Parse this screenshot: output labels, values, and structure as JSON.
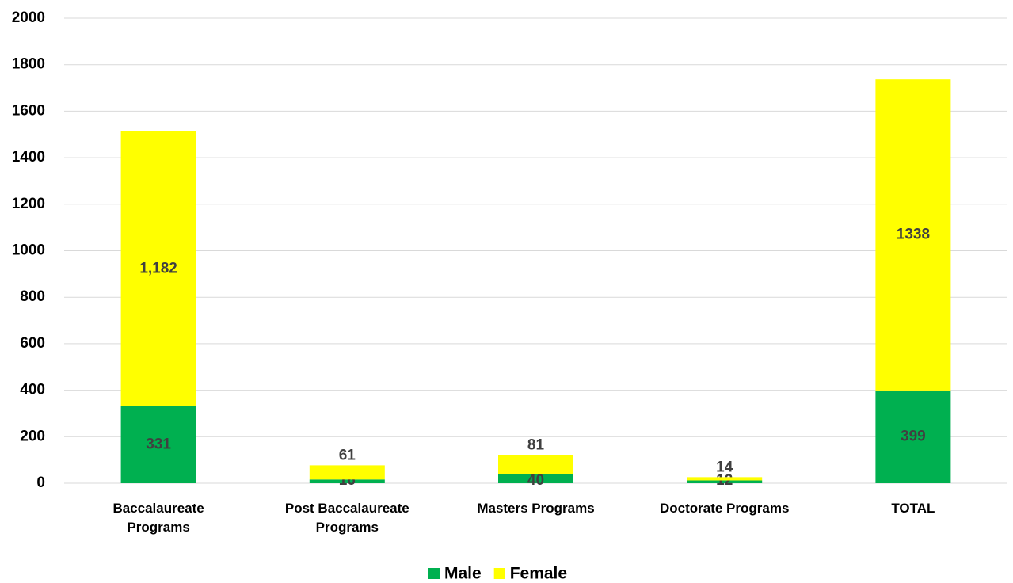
{
  "chart_data": {
    "type": "bar",
    "stacked": true,
    "categories": [
      "Baccalaureate Programs",
      "Post Baccalaureate Programs",
      "Masters Programs",
      "Doctorate Programs",
      "TOTAL"
    ],
    "series": [
      {
        "name": "Male",
        "color": "#00b050",
        "values": [
          331,
          16,
          40,
          12,
          399
        ]
      },
      {
        "name": "Female",
        "color": "#ffff00",
        "values": [
          1182,
          61,
          81,
          14,
          1338
        ],
        "value_labels": [
          "1,182",
          "61",
          "81",
          "14",
          "1338"
        ]
      }
    ],
    "ylim": [
      0,
      2000
    ],
    "yticks": [
      0,
      200,
      400,
      600,
      800,
      1000,
      1200,
      1400,
      1600,
      1800,
      2000
    ],
    "grid": true,
    "legend": "bottom"
  }
}
